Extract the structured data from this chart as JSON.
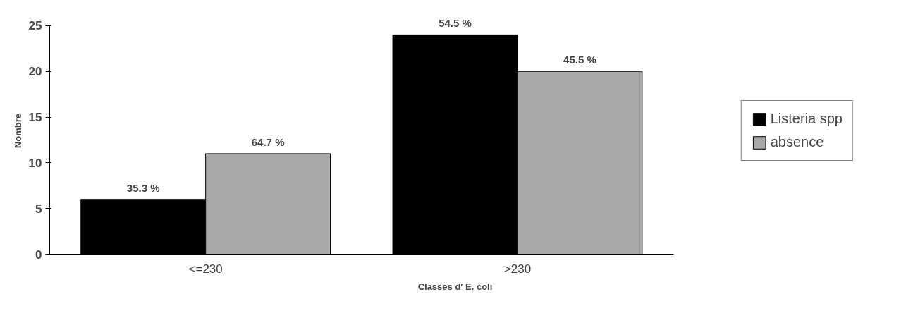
{
  "chart_data": {
    "type": "bar",
    "xlabel": "Classes d' E. coli",
    "ylabel": "Nombre",
    "categories": [
      "<=230",
      ">230"
    ],
    "series": [
      {
        "name": "Listeria spp",
        "color": "#000000",
        "values": [
          6,
          24
        ]
      },
      {
        "name": "absence",
        "color": "#a8a8a8",
        "values": [
          11,
          20
        ]
      }
    ],
    "annotations": [
      "35.3 %",
      "64.7 %",
      "54.5 %",
      "45.5 %"
    ],
    "ylim": [
      0,
      25
    ],
    "yticks": [
      0,
      5,
      10,
      15,
      20,
      25
    ],
    "grid": false,
    "legend": "right"
  }
}
